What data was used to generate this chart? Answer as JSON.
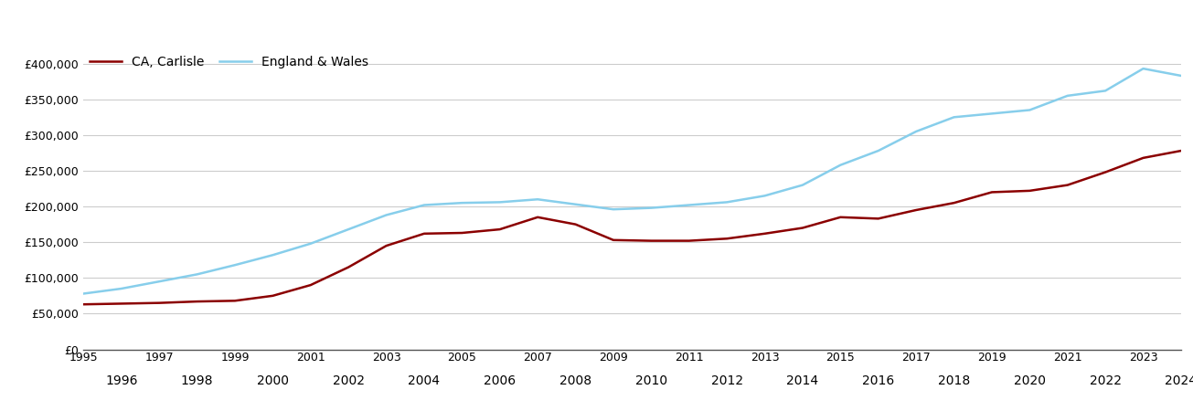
{
  "carlisle": {
    "years": [
      1995,
      1996,
      1997,
      1998,
      1999,
      2000,
      2001,
      2002,
      2003,
      2004,
      2005,
      2006,
      2007,
      2008,
      2009,
      2010,
      2011,
      2012,
      2013,
      2014,
      2015,
      2016,
      2017,
      2018,
      2019,
      2020,
      2021,
      2022,
      2023,
      2024
    ],
    "values": [
      63000,
      64000,
      65000,
      67000,
      68000,
      75000,
      90000,
      115000,
      145000,
      162000,
      163000,
      168000,
      185000,
      175000,
      153000,
      152000,
      152000,
      155000,
      162000,
      170000,
      185000,
      183000,
      195000,
      205000,
      220000,
      222000,
      230000,
      248000,
      268000,
      278000
    ]
  },
  "england_wales": {
    "years": [
      1995,
      1996,
      1997,
      1998,
      1999,
      2000,
      2001,
      2002,
      2003,
      2004,
      2005,
      2006,
      2007,
      2008,
      2009,
      2010,
      2011,
      2012,
      2013,
      2014,
      2015,
      2016,
      2017,
      2018,
      2019,
      2020,
      2021,
      2022,
      2023,
      2024
    ],
    "values": [
      78000,
      85000,
      95000,
      105000,
      118000,
      132000,
      148000,
      168000,
      188000,
      202000,
      205000,
      206000,
      210000,
      203000,
      196000,
      198000,
      202000,
      206000,
      215000,
      230000,
      258000,
      278000,
      305000,
      325000,
      330000,
      335000,
      355000,
      362000,
      393000,
      383000
    ]
  },
  "carlisle_color": "#8B0000",
  "england_wales_color": "#87CEEB",
  "background_color": "#ffffff",
  "grid_color": "#cccccc",
  "ylim": [
    0,
    420000
  ],
  "yticks": [
    0,
    50000,
    100000,
    150000,
    200000,
    250000,
    300000,
    350000,
    400000
  ],
  "legend_labels": [
    "CA, Carlisle",
    "England & Wales"
  ],
  "line_width": 1.8,
  "odd_xticks": [
    1995,
    1997,
    1999,
    2001,
    2003,
    2005,
    2007,
    2009,
    2011,
    2013,
    2015,
    2017,
    2019,
    2021,
    2023
  ],
  "even_xticks": [
    1996,
    1998,
    2000,
    2002,
    2004,
    2006,
    2008,
    2010,
    2012,
    2014,
    2016,
    2018,
    2020,
    2022,
    2024
  ]
}
